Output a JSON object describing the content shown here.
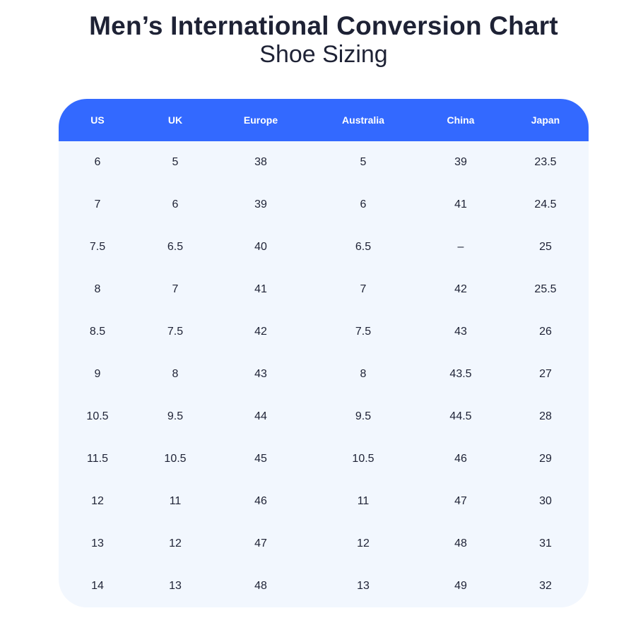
{
  "title": "Men’s International Conversion Chart",
  "subtitle": "Shoe Sizing",
  "colors": {
    "header_bg": "#3369ff",
    "body_bg": "#f2f7fe",
    "text": "#1e2235"
  },
  "table": {
    "headers": [
      "US",
      "UK",
      "Europe",
      "Australia",
      "China",
      "Japan"
    ],
    "rows": [
      [
        "6",
        "5",
        "38",
        "5",
        "39",
        "23.5"
      ],
      [
        "7",
        "6",
        "39",
        "6",
        "41",
        "24.5"
      ],
      [
        "7.5",
        "6.5",
        "40",
        "6.5",
        "–",
        "25"
      ],
      [
        "8",
        "7",
        "41",
        "7",
        "42",
        "25.5"
      ],
      [
        "8.5",
        "7.5",
        "42",
        "7.5",
        "43",
        "26"
      ],
      [
        "9",
        "8",
        "43",
        "8",
        "43.5",
        "27"
      ],
      [
        "10.5",
        "9.5",
        "44",
        "9.5",
        "44.5",
        "28"
      ],
      [
        "11.5",
        "10.5",
        "45",
        "10.5",
        "46",
        "29"
      ],
      [
        "12",
        "11",
        "46",
        "11",
        "47",
        "30"
      ],
      [
        "13",
        "12",
        "47",
        "12",
        "48",
        "31"
      ],
      [
        "14",
        "13",
        "48",
        "13",
        "49",
        "32"
      ]
    ]
  }
}
